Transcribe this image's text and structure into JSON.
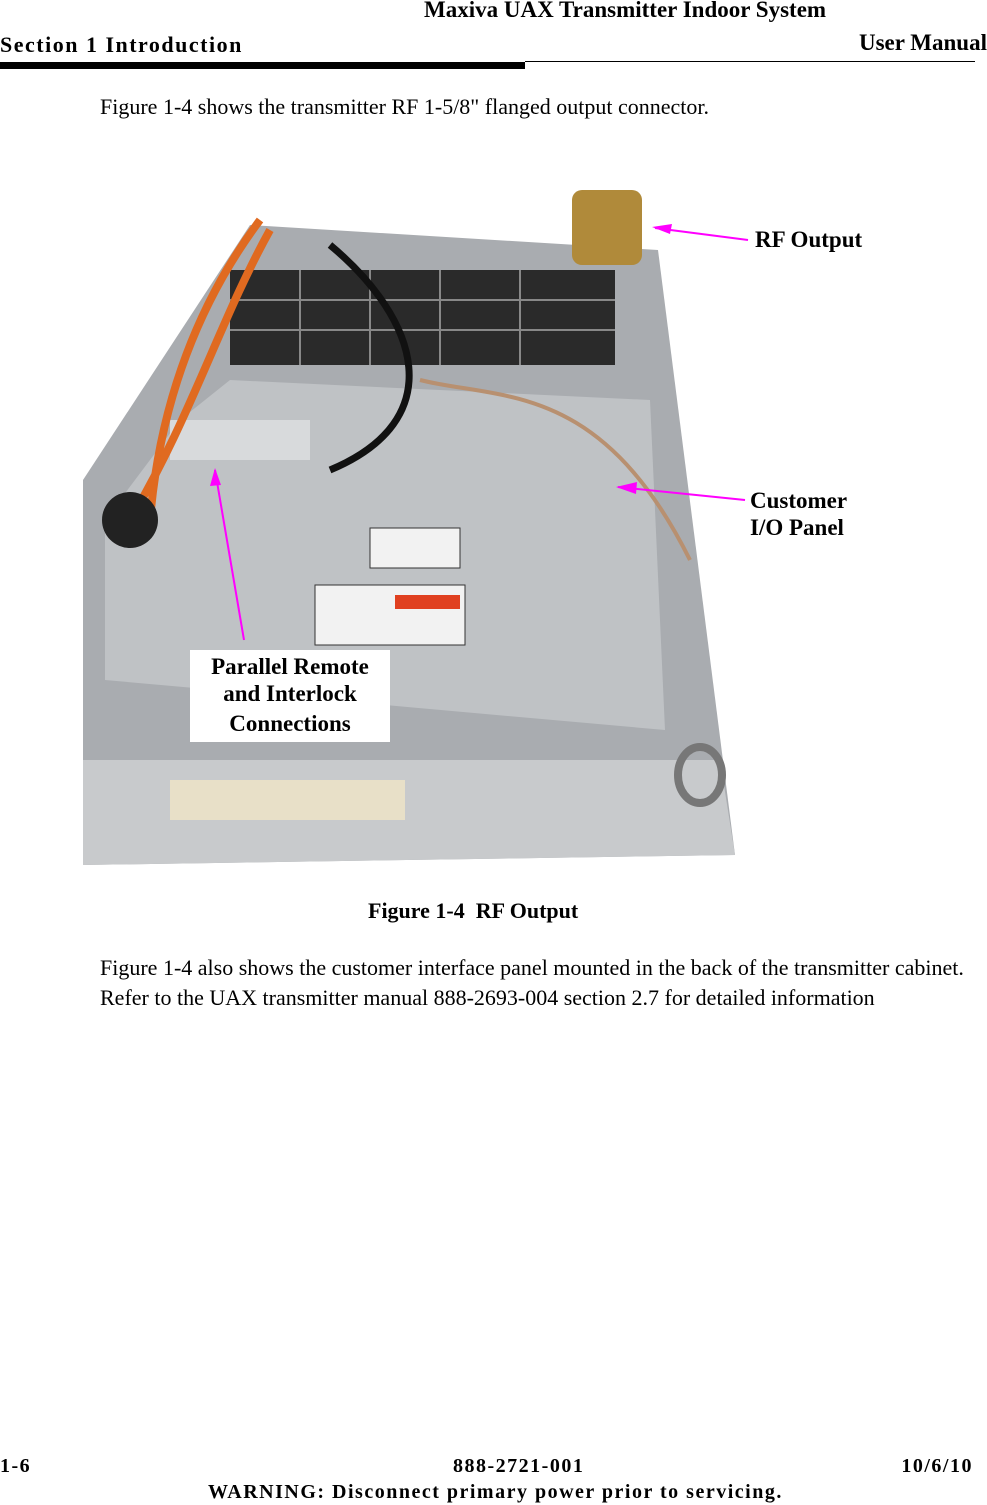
{
  "header": {
    "title": "Maxiva UAX Transmitter Indoor System",
    "section": "Section 1 Introduction",
    "manual": "User Manual"
  },
  "intro": "Figure 1-4 shows the transmitter RF 1-5/8\" flanged output connector.",
  "figure": {
    "callouts": {
      "rf_output": "RF Output",
      "customer_io": [
        "Customer",
        "I/O Panel"
      ],
      "parallel_remote": [
        "Parallel Remote",
        "and Interlock",
        "Connections"
      ]
    },
    "caption": "Figure 1-4  RF Output"
  },
  "body": "Figure 1-4 also shows the customer interface panel mounted in the back of the transmitter cabinet. Refer to the UAX transmitter manual 888-2693-004 section 2.7 for detailed information",
  "footer": {
    "page": "1-6",
    "doc_number": "888-2721-001",
    "date": "10/6/10",
    "warning": "WARNING: Disconnect primary power prior to servicing."
  }
}
